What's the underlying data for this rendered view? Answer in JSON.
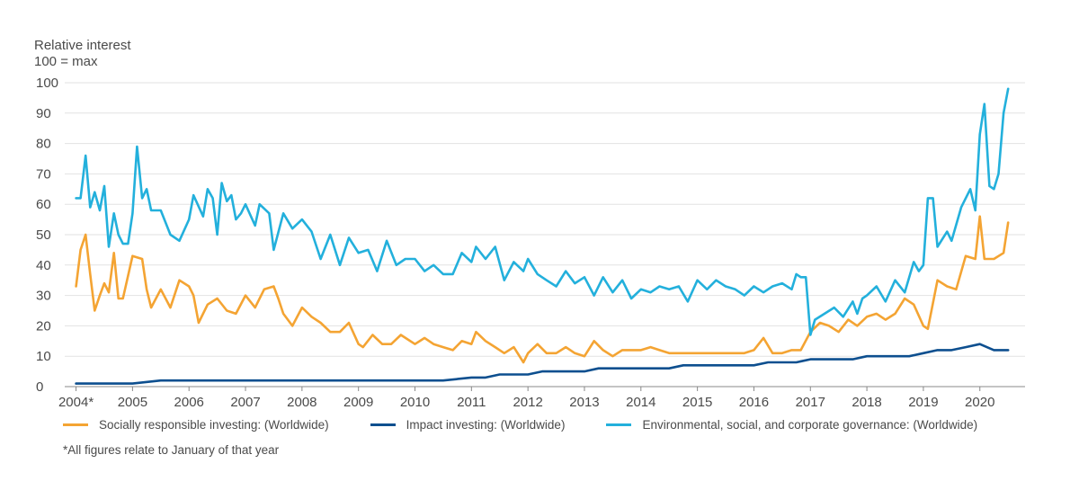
{
  "chart_data": {
    "type": "line",
    "ylabel_line1": "Relative interest",
    "ylabel_line2": "100 = max",
    "ylim": [
      0,
      100
    ],
    "yticks": [
      0,
      10,
      20,
      30,
      40,
      50,
      60,
      70,
      80,
      90,
      100
    ],
    "xlim": [
      2003.8,
      2020.8
    ],
    "xticks": [
      {
        "value": 2004,
        "label": "2004*"
      },
      {
        "value": 2005,
        "label": "2005"
      },
      {
        "value": 2006,
        "label": "2006"
      },
      {
        "value": 2007,
        "label": "2007"
      },
      {
        "value": 2008,
        "label": "2008"
      },
      {
        "value": 2009,
        "label": "2009"
      },
      {
        "value": 2010,
        "label": "2010"
      },
      {
        "value": 2011,
        "label": "2011"
      },
      {
        "value": 2012,
        "label": "2012"
      },
      {
        "value": 2013,
        "label": "2013"
      },
      {
        "value": 2014,
        "label": "2014"
      },
      {
        "value": 2015,
        "label": "2015"
      },
      {
        "value": 2016,
        "label": "2016"
      },
      {
        "value": 2017,
        "label": "2017"
      },
      {
        "value": 2018,
        "label": "2018"
      },
      {
        "value": 2019,
        "label": "2019"
      },
      {
        "value": 2020,
        "label": "2020"
      }
    ],
    "grid": "horizontal",
    "legend_position": "bottom",
    "footnote": "*All figures relate to January of that year",
    "series": [
      {
        "name": "Socially responsible investing: (Worldwide)",
        "color": "#f4a433",
        "x": [
          2004.0,
          2004.08,
          2004.17,
          2004.25,
          2004.33,
          2004.42,
          2004.5,
          2004.58,
          2004.67,
          2004.75,
          2004.83,
          2005.0,
          2005.17,
          2005.25,
          2005.33,
          2005.5,
          2005.67,
          2005.83,
          2006.0,
          2006.08,
          2006.17,
          2006.33,
          2006.5,
          2006.67,
          2006.83,
          2007.0,
          2007.17,
          2007.33,
          2007.5,
          2007.58,
          2007.67,
          2007.83,
          2008.0,
          2008.17,
          2008.33,
          2008.5,
          2008.67,
          2008.83,
          2009.0,
          2009.08,
          2009.25,
          2009.42,
          2009.58,
          2009.75,
          2010.0,
          2010.17,
          2010.33,
          2010.5,
          2010.67,
          2010.83,
          2011.0,
          2011.08,
          2011.25,
          2011.42,
          2011.58,
          2011.75,
          2011.92,
          2012.0,
          2012.17,
          2012.33,
          2012.5,
          2012.67,
          2012.83,
          2013.0,
          2013.17,
          2013.33,
          2013.5,
          2013.67,
          2013.83,
          2014.0,
          2014.17,
          2014.33,
          2014.5,
          2014.67,
          2014.83,
          2015.0,
          2015.17,
          2015.33,
          2015.5,
          2015.67,
          2015.83,
          2016.0,
          2016.17,
          2016.33,
          2016.5,
          2016.67,
          2016.83,
          2017.0,
          2017.17,
          2017.33,
          2017.5,
          2017.67,
          2017.83,
          2018.0,
          2018.17,
          2018.33,
          2018.5,
          2018.67,
          2018.83,
          2019.0,
          2019.08,
          2019.25,
          2019.42,
          2019.58,
          2019.75,
          2019.92,
          2020.0,
          2020.08,
          2020.25,
          2020.42,
          2020.5
        ],
        "y": [
          33,
          45,
          50,
          37,
          25,
          30,
          34,
          31,
          44,
          29,
          29,
          43,
          42,
          32,
          26,
          32,
          26,
          35,
          33,
          30,
          21,
          27,
          29,
          25,
          24,
          30,
          26,
          32,
          33,
          29,
          24,
          20,
          26,
          23,
          21,
          18,
          18,
          21,
          14,
          13,
          17,
          14,
          14,
          17,
          14,
          16,
          14,
          13,
          12,
          15,
          14,
          18,
          15,
          13,
          11,
          13,
          8,
          11,
          14,
          11,
          11,
          13,
          11,
          10,
          15,
          12,
          10,
          12,
          12,
          12,
          13,
          12,
          11,
          11,
          11,
          11,
          11,
          11,
          11,
          11,
          11,
          12,
          16,
          11,
          11,
          12,
          12,
          18,
          21,
          20,
          18,
          22,
          20,
          23,
          24,
          22,
          24,
          29,
          27,
          20,
          19,
          35,
          33,
          32,
          43,
          42,
          56,
          42,
          42,
          44,
          54
        ]
      },
      {
        "name": "Impact investing: (Worldwide)",
        "color": "#0d4f8f",
        "x": [
          2004.0,
          2004.5,
          2005.0,
          2005.5,
          2006.0,
          2006.5,
          2007.0,
          2007.5,
          2008.0,
          2008.5,
          2009.0,
          2009.5,
          2010.0,
          2010.5,
          2011.0,
          2011.25,
          2011.5,
          2011.75,
          2012.0,
          2012.25,
          2012.5,
          2012.75,
          2013.0,
          2013.25,
          2013.5,
          2013.75,
          2014.0,
          2014.25,
          2014.5,
          2014.75,
          2015.0,
          2015.25,
          2015.5,
          2015.75,
          2016.0,
          2016.25,
          2016.5,
          2016.75,
          2017.0,
          2017.25,
          2017.5,
          2017.75,
          2018.0,
          2018.25,
          2018.5,
          2018.75,
          2019.0,
          2019.25,
          2019.5,
          2019.75,
          2020.0,
          2020.25,
          2020.5
        ],
        "y": [
          1,
          1,
          1,
          2,
          2,
          2,
          2,
          2,
          2,
          2,
          2,
          2,
          2,
          2,
          3,
          3,
          4,
          4,
          4,
          5,
          5,
          5,
          5,
          6,
          6,
          6,
          6,
          6,
          6,
          7,
          7,
          7,
          7,
          7,
          7,
          8,
          8,
          8,
          9,
          9,
          9,
          9,
          10,
          10,
          10,
          10,
          11,
          12,
          12,
          13,
          14,
          12,
          12
        ]
      },
      {
        "name": "Environmental, social, and corporate governance: (Worldwide)",
        "color": "#23b0dc",
        "x": [
          2004.0,
          2004.08,
          2004.17,
          2004.25,
          2004.33,
          2004.42,
          2004.5,
          2004.58,
          2004.67,
          2004.75,
          2004.83,
          2004.92,
          2005.0,
          2005.08,
          2005.17,
          2005.25,
          2005.33,
          2005.5,
          2005.67,
          2005.83,
          2006.0,
          2006.08,
          2006.25,
          2006.33,
          2006.42,
          2006.5,
          2006.58,
          2006.67,
          2006.75,
          2006.83,
          2006.92,
          2007.0,
          2007.17,
          2007.25,
          2007.42,
          2007.5,
          2007.67,
          2007.83,
          2008.0,
          2008.17,
          2008.33,
          2008.5,
          2008.67,
          2008.83,
          2009.0,
          2009.17,
          2009.33,
          2009.5,
          2009.67,
          2009.83,
          2010.0,
          2010.17,
          2010.33,
          2010.5,
          2010.67,
          2010.83,
          2011.0,
          2011.08,
          2011.25,
          2011.42,
          2011.58,
          2011.75,
          2011.92,
          2012.0,
          2012.17,
          2012.33,
          2012.5,
          2012.67,
          2012.83,
          2013.0,
          2013.17,
          2013.33,
          2013.5,
          2013.67,
          2013.83,
          2014.0,
          2014.17,
          2014.33,
          2014.5,
          2014.67,
          2014.83,
          2015.0,
          2015.17,
          2015.33,
          2015.5,
          2015.67,
          2015.83,
          2016.0,
          2016.17,
          2016.33,
          2016.5,
          2016.67,
          2016.75,
          2016.83,
          2016.92,
          2017.0,
          2017.08,
          2017.25,
          2017.42,
          2017.58,
          2017.75,
          2017.83,
          2017.92,
          2018.0,
          2018.17,
          2018.33,
          2018.5,
          2018.67,
          2018.83,
          2018.92,
          2019.0,
          2019.08,
          2019.17,
          2019.25,
          2019.42,
          2019.5,
          2019.67,
          2019.83,
          2019.92,
          2020.0,
          2020.08,
          2020.17,
          2020.25,
          2020.33,
          2020.42,
          2020.5
        ],
        "y": [
          62,
          62,
          76,
          59,
          64,
          58,
          66,
          46,
          57,
          50,
          47,
          47,
          57,
          79,
          62,
          65,
          58,
          58,
          50,
          48,
          55,
          63,
          56,
          65,
          62,
          50,
          67,
          61,
          63,
          55,
          57,
          60,
          53,
          60,
          57,
          45,
          57,
          52,
          55,
          51,
          42,
          50,
          40,
          49,
          44,
          45,
          38,
          48,
          40,
          42,
          42,
          38,
          40,
          37,
          37,
          44,
          41,
          46,
          42,
          46,
          35,
          41,
          38,
          42,
          37,
          35,
          33,
          38,
          34,
          36,
          30,
          36,
          31,
          35,
          29,
          32,
          31,
          33,
          32,
          33,
          28,
          35,
          32,
          35,
          33,
          32,
          30,
          33,
          31,
          33,
          34,
          32,
          37,
          36,
          36,
          17,
          22,
          24,
          26,
          23,
          28,
          24,
          29,
          30,
          33,
          28,
          35,
          31,
          41,
          38,
          40,
          62,
          62,
          46,
          51,
          48,
          59,
          65,
          58,
          83,
          93,
          66,
          65,
          70,
          90,
          98
        ]
      }
    ]
  }
}
